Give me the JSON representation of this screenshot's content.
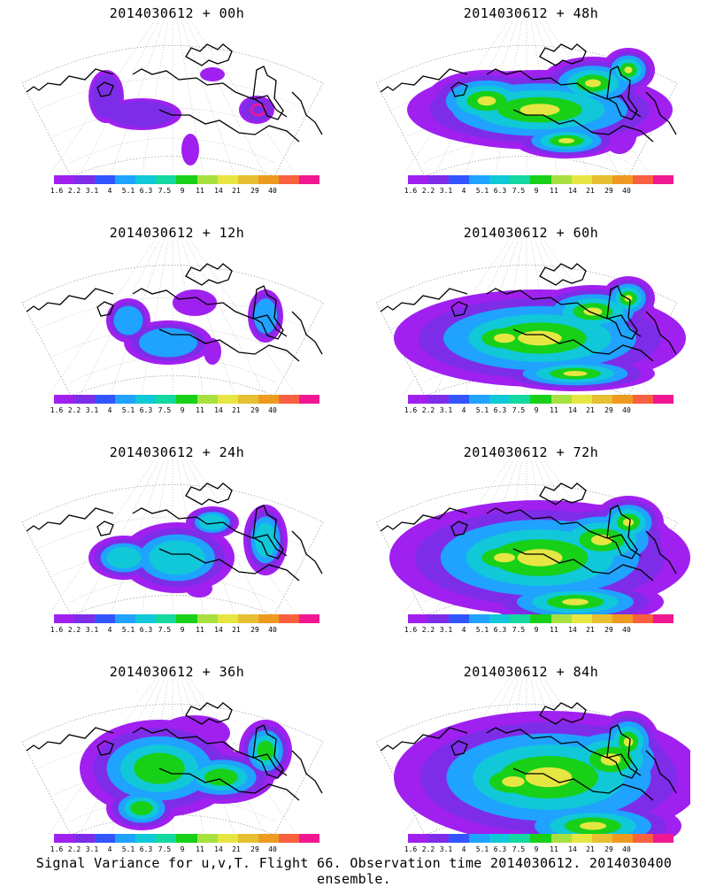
{
  "panels": [
    {
      "title": "2014030612 + 00h",
      "level": 0
    },
    {
      "title": "2014030612 + 48h",
      "level": 4
    },
    {
      "title": "2014030612 + 12h",
      "level": 1
    },
    {
      "title": "2014030612 + 60h",
      "level": 5
    },
    {
      "title": "2014030612 + 24h",
      "level": 2
    },
    {
      "title": "2014030612 + 72h",
      "level": 6
    },
    {
      "title": "2014030612 + 36h",
      "level": 3
    },
    {
      "title": "2014030612 + 84h",
      "level": 7
    }
  ],
  "colorbar": {
    "labels": [
      "1.6",
      "2.2",
      "3.1",
      "4",
      "5.1",
      "6.3",
      "7.5",
      "9",
      "11",
      "14",
      "21",
      "29",
      "40"
    ],
    "colors": [
      "#a020f0",
      "#7d2de8",
      "#3355ff",
      "#1fa3ff",
      "#10c8d8",
      "#14d8a0",
      "#18d018",
      "#a8e040",
      "#e6e642",
      "#e6c030",
      "#ee9a20",
      "#f86040",
      "#f01890"
    ]
  },
  "footer": "Signal Variance for u,v,T. Flight 66. Observation time 2014030612. 2014030400 ensemble."
}
